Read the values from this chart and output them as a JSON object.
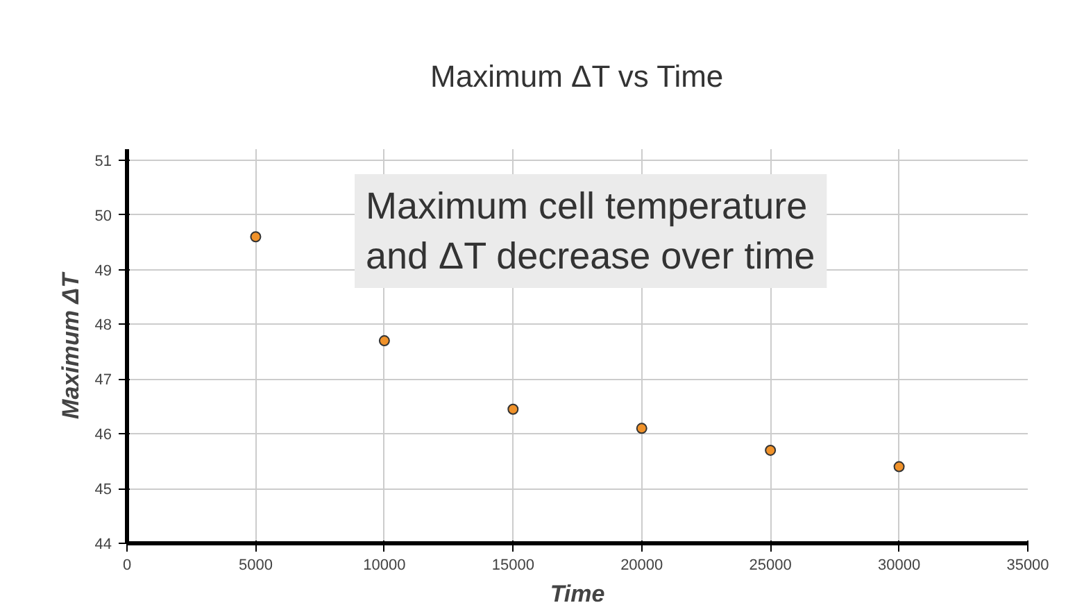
{
  "chart_data": {
    "type": "scatter",
    "title": "Maximum ΔT vs Time",
    "xlabel": "Time",
    "ylabel": "Maximum ΔT",
    "x": [
      5000,
      10000,
      15000,
      20000,
      25000,
      30000
    ],
    "series": [
      {
        "color": "#f0922a",
        "values": [
          49.6,
          47.7,
          46.45,
          46.1,
          45.7,
          45.4
        ]
      }
    ],
    "xlim": [
      0,
      35000
    ],
    "xticks": [
      0,
      5000,
      10000,
      15000,
      20000,
      25000,
      30000,
      35000
    ],
    "ylim": [
      44,
      51.2
    ],
    "yticks": [
      44,
      45,
      46,
      47,
      48,
      49,
      50,
      51
    ],
    "grid": true,
    "marker": "circle",
    "annotations": [
      "Maximum cell temperature\nand ΔT decrease over time"
    ]
  }
}
